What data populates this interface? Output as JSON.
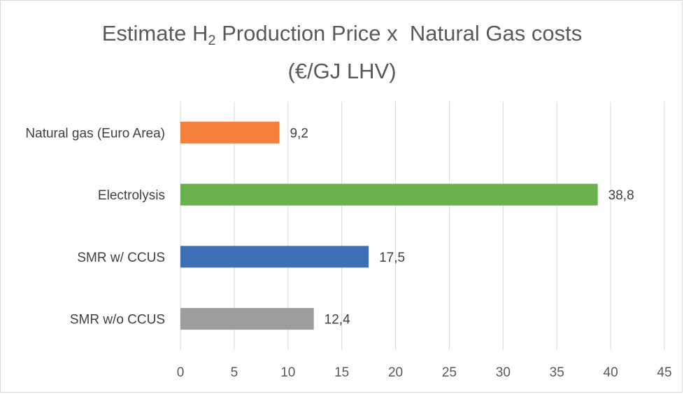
{
  "chart": {
    "title_line1_prefix": "Estimate H",
    "title_subscript": "2",
    "title_line1_suffix": " Production Price x  Natural Gas costs",
    "title_line2": "(€/GJ LHV)"
  },
  "chart_data": {
    "type": "bar",
    "orientation": "horizontal",
    "title": "Estimate H2 Production Price x  Natural Gas costs (€/GJ LHV)",
    "categories": [
      "Natural gas (Euro Area)",
      "Electrolysis",
      "SMR w/ CCUS",
      "SMR w/o CCUS"
    ],
    "values": [
      9.2,
      38.8,
      17.5,
      12.4
    ],
    "data_labels": [
      "9,2",
      "38,8",
      "17,5",
      "12,4"
    ],
    "colors": [
      "#f4803c",
      "#6ab04c",
      "#3d6fb6",
      "#9c9e9d"
    ],
    "xlim": [
      0,
      45
    ],
    "xticks": [
      0,
      5,
      10,
      15,
      20,
      25,
      30,
      35,
      40,
      45
    ],
    "grid": "vertical",
    "legend": "none",
    "xlabel": "",
    "ylabel": ""
  }
}
